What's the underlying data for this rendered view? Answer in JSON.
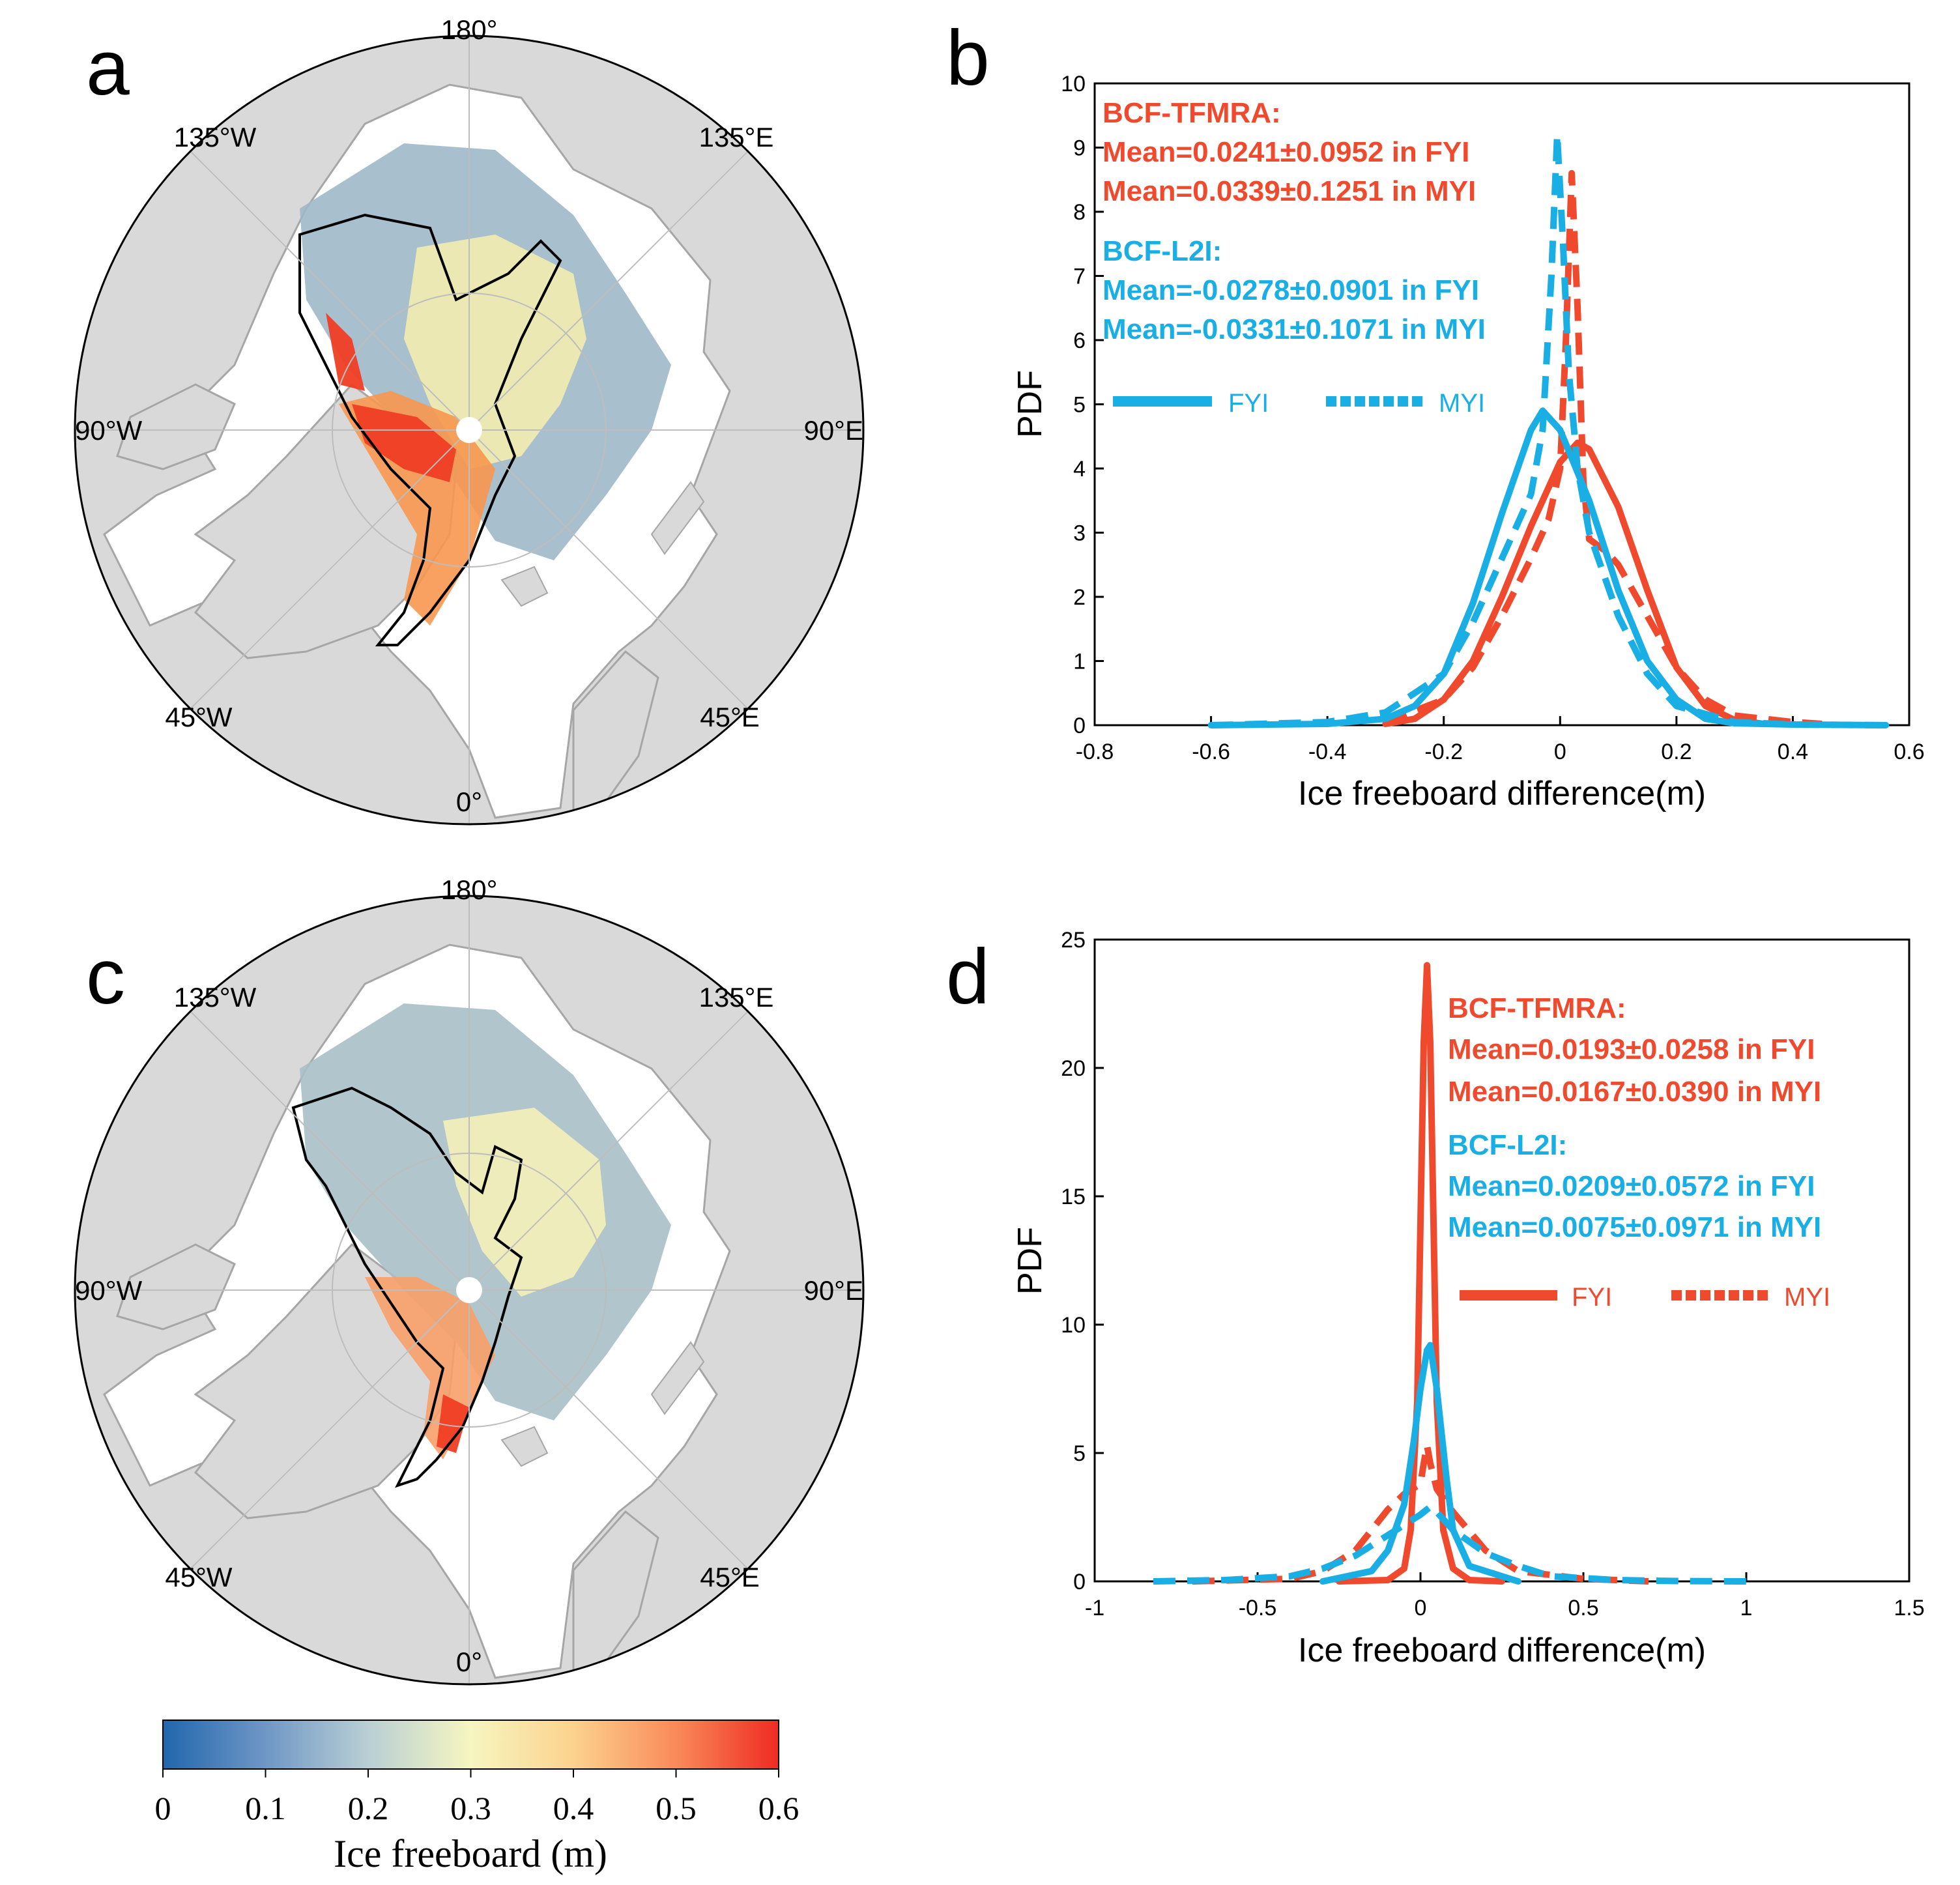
{
  "panels": {
    "a": {
      "letter": "a"
    },
    "b": {
      "letter": "b"
    },
    "c": {
      "letter": "c"
    },
    "d": {
      "letter": "d"
    }
  },
  "maps": {
    "lon_labels": {
      "top": "180°",
      "upper_left": "135°W",
      "upper_right": "135°E",
      "left": "90°W",
      "right": "90°E",
      "lower_left": "45°W",
      "lower_right": "45°E",
      "bottom": "0°"
    },
    "colors": {
      "land": "#d9d9d9",
      "ocean": "#ffffff",
      "coast": "#a6a6a6",
      "boundary": "#000000"
    }
  },
  "colorbar": {
    "label": "Ice freeboard (m)",
    "ticks": [
      "0",
      "0.1",
      "0.2",
      "0.3",
      "0.4",
      "0.5",
      "0.6"
    ],
    "range": [
      0,
      0.6
    ],
    "colors": [
      "#2166ac",
      "#6f97c6",
      "#b9cfd4",
      "#f6f6c0",
      "#fcd28e",
      "#f98a59",
      "#ef2b23"
    ]
  },
  "chart_data": [
    {
      "panel": "b",
      "type": "line",
      "xlabel": "Ice freeboard difference(m)",
      "ylabel": "PDF",
      "xlim": [
        -0.8,
        0.6
      ],
      "ylim": [
        0,
        10
      ],
      "xticks": [
        "-0.8",
        "-0.6",
        "-0.4",
        "-0.2",
        "0",
        "0.2",
        "0.4",
        "0.6"
      ],
      "yticks": [
        "0",
        "1",
        "2",
        "3",
        "4",
        "5",
        "6",
        "7",
        "8",
        "9",
        "10"
      ],
      "annotations": [
        {
          "text": "BCF-TFMRA:",
          "color": "#f04a2e"
        },
        {
          "text": "Mean=0.0241±0.0952 in FYI",
          "color": "#f04a2e"
        },
        {
          "text": "Mean=0.0339±0.1251 in MYI",
          "color": "#f04a2e"
        },
        {
          "text": "BCF-L2I:",
          "color": "#19aee4"
        },
        {
          "text": "Mean=-0.0278±0.0901 in FYI",
          "color": "#19aee4"
        },
        {
          "text": "Mean=-0.0331±0.1071 in MYI",
          "color": "#19aee4"
        }
      ],
      "legend": {
        "color": "#19aee4",
        "items": [
          "FYI",
          "MYI"
        ]
      },
      "series": [
        {
          "name": "BCF-TFMRA FYI",
          "color": "#f04a2e",
          "style": "solid",
          "x": [
            -0.3,
            -0.25,
            -0.2,
            -0.15,
            -0.1,
            -0.05,
            0.0,
            0.03,
            0.05,
            0.1,
            0.15,
            0.2,
            0.25,
            0.3,
            0.35
          ],
          "y": [
            0.02,
            0.1,
            0.4,
            1.0,
            2.0,
            3.1,
            4.1,
            4.4,
            4.3,
            3.4,
            2.1,
            0.9,
            0.3,
            0.08,
            0.02
          ]
        },
        {
          "name": "BCF-TFMRA MYI",
          "color": "#f04a2e",
          "style": "dashed",
          "x": [
            -0.3,
            -0.2,
            -0.15,
            -0.1,
            -0.05,
            -0.02,
            0.0,
            0.01,
            0.02,
            0.03,
            0.04,
            0.05,
            0.08,
            0.1,
            0.15,
            0.2,
            0.25,
            0.3,
            0.4,
            0.45
          ],
          "y": [
            0.05,
            0.4,
            0.9,
            1.7,
            2.6,
            3.2,
            4.0,
            6.0,
            8.6,
            6.5,
            3.8,
            2.9,
            2.7,
            2.5,
            1.7,
            0.9,
            0.4,
            0.15,
            0.05,
            0.02
          ]
        },
        {
          "name": "BCF-L2I FYI",
          "color": "#19aee4",
          "style": "solid",
          "x": [
            -0.6,
            -0.4,
            -0.3,
            -0.25,
            -0.2,
            -0.15,
            -0.1,
            -0.05,
            -0.03,
            0.0,
            0.05,
            0.1,
            0.15,
            0.2,
            0.25,
            0.3,
            0.4,
            0.56
          ],
          "y": [
            0.0,
            0.02,
            0.1,
            0.3,
            0.8,
            1.9,
            3.3,
            4.6,
            4.9,
            4.6,
            3.5,
            2.1,
            1.0,
            0.4,
            0.1,
            0.03,
            0.01,
            0.0
          ]
        },
        {
          "name": "BCF-L2I MYI",
          "color": "#19aee4",
          "style": "dashed",
          "x": [
            -0.6,
            -0.4,
            -0.3,
            -0.2,
            -0.15,
            -0.1,
            -0.05,
            -0.03,
            -0.015,
            -0.005,
            0.005,
            0.015,
            0.03,
            0.05,
            0.1,
            0.15,
            0.2,
            0.3,
            0.4,
            0.56
          ],
          "y": [
            0.0,
            0.05,
            0.2,
            0.8,
            1.6,
            2.6,
            3.6,
            4.6,
            7.0,
            9.2,
            7.5,
            5.5,
            4.0,
            3.0,
            1.7,
            0.8,
            0.3,
            0.05,
            0.01,
            0.0
          ]
        }
      ]
    },
    {
      "panel": "d",
      "type": "line",
      "xlabel": "Ice freeboard difference(m)",
      "ylabel": "PDF",
      "xlim": [
        -1,
        1.5
      ],
      "ylim": [
        0,
        25
      ],
      "xticks": [
        "-1",
        "-0.5",
        "0",
        "0.5",
        "1",
        "1.5"
      ],
      "yticks": [
        "0",
        "5",
        "10",
        "15",
        "20",
        "25"
      ],
      "annotations": [
        {
          "text": "BCF-TFMRA:",
          "color": "#f04a2e"
        },
        {
          "text": "Mean=0.0193±0.0258 in FYI",
          "color": "#f04a2e"
        },
        {
          "text": "Mean=0.0167±0.0390 in MYI",
          "color": "#f04a2e"
        },
        {
          "text": "BCF-L2I:",
          "color": "#19aee4"
        },
        {
          "text": "Mean=0.0209±0.0572 in FYI",
          "color": "#19aee4"
        },
        {
          "text": "Mean=0.0075±0.0971 in MYI",
          "color": "#19aee4"
        }
      ],
      "legend": {
        "color": "#f04a2e",
        "items": [
          "FYI",
          "MYI"
        ]
      },
      "series": [
        {
          "name": "BCF-TFMRA FYI",
          "color": "#f04a2e",
          "style": "solid",
          "x": [
            -0.25,
            -0.1,
            -0.05,
            -0.03,
            -0.01,
            0.0,
            0.01,
            0.02,
            0.03,
            0.04,
            0.05,
            0.07,
            0.1,
            0.15,
            0.25
          ],
          "y": [
            0.0,
            0.05,
            0.5,
            2.0,
            7.0,
            14.0,
            21.0,
            24.0,
            21.0,
            14.0,
            7.0,
            2.0,
            0.5,
            0.05,
            0.0
          ]
        },
        {
          "name": "BCF-TFMRA MYI",
          "color": "#f04a2e",
          "style": "dashed",
          "x": [
            -0.7,
            -0.4,
            -0.3,
            -0.2,
            -0.1,
            -0.05,
            0.0,
            0.01,
            0.02,
            0.03,
            0.05,
            0.1,
            0.2,
            0.3,
            0.5,
            0.7
          ],
          "y": [
            0.0,
            0.1,
            0.4,
            1.2,
            2.8,
            3.4,
            3.8,
            4.6,
            5.3,
            4.6,
            3.6,
            2.7,
            1.2,
            0.4,
            0.1,
            0.0
          ]
        },
        {
          "name": "BCF-L2I FYI",
          "color": "#19aee4",
          "style": "solid",
          "x": [
            -0.3,
            -0.15,
            -0.1,
            -0.05,
            -0.02,
            0.0,
            0.02,
            0.03,
            0.05,
            0.08,
            0.1,
            0.15,
            0.3
          ],
          "y": [
            0.0,
            0.4,
            1.2,
            3.0,
            5.5,
            7.5,
            9.0,
            9.2,
            7.5,
            4.0,
            2.0,
            0.6,
            0.0
          ]
        },
        {
          "name": "BCF-L2I MYI",
          "color": "#19aee4",
          "style": "dashed",
          "x": [
            -0.82,
            -0.6,
            -0.4,
            -0.3,
            -0.2,
            -0.1,
            0.0,
            0.03,
            0.05,
            0.1,
            0.2,
            0.3,
            0.4,
            0.6,
            0.8,
            1.0
          ],
          "y": [
            0.0,
            0.05,
            0.2,
            0.5,
            1.0,
            1.8,
            2.6,
            2.9,
            2.7,
            2.0,
            1.1,
            0.6,
            0.2,
            0.05,
            0.01,
            0.0
          ]
        }
      ]
    }
  ]
}
